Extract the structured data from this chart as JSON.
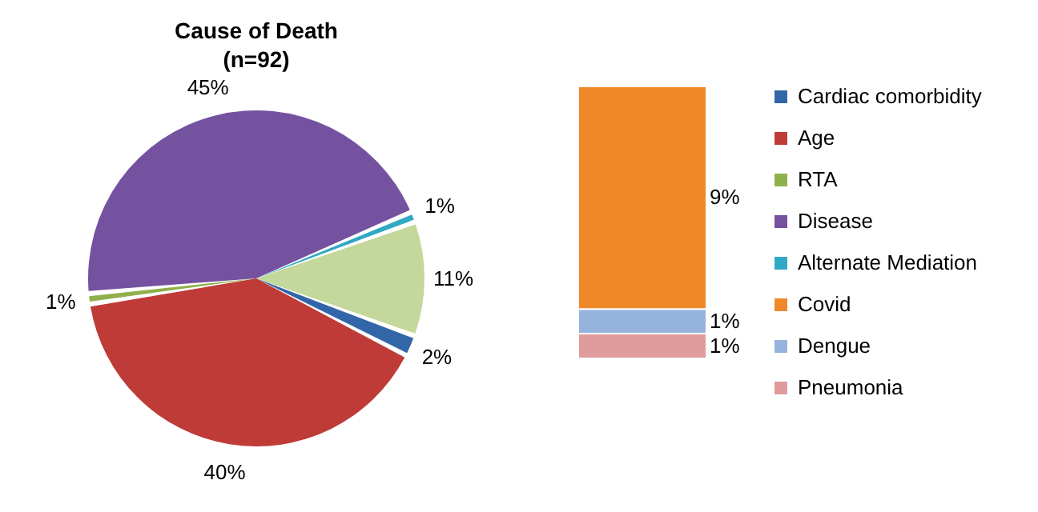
{
  "chart_data": [
    {
      "type": "pie",
      "title": "Cause of Death",
      "subtitle": "(n=92)",
      "categories": [
        "Cardiac comorbidity",
        "Age",
        "RTA",
        "Disease",
        "Alternate Mediation",
        null
      ],
      "values": [
        2,
        40,
        1,
        45,
        1,
        11
      ],
      "colors": [
        "#3366a8",
        "#be3b37",
        "#8fb04a",
        "#7552a0",
        "#2fa9c4",
        "#c4d89c"
      ],
      "value_labels": [
        "2%",
        "40%",
        "1%",
        "45%",
        "1%",
        "11%"
      ],
      "legend": "right"
    },
    {
      "type": "bar",
      "stacked": true,
      "categories": [
        null
      ],
      "series": [
        {
          "name": "Pneumonia",
          "color": "#e09c9c",
          "values": [
            1
          ],
          "value_labels": [
            "1%"
          ]
        },
        {
          "name": "Dengue",
          "color": "#95b3dc",
          "values": [
            1
          ],
          "value_labels": [
            "1%"
          ]
        },
        {
          "name": "Covid",
          "color": "#f0882a",
          "values": [
            9
          ],
          "value_labels": [
            "9%"
          ]
        }
      ],
      "legend": "right"
    }
  ]
}
